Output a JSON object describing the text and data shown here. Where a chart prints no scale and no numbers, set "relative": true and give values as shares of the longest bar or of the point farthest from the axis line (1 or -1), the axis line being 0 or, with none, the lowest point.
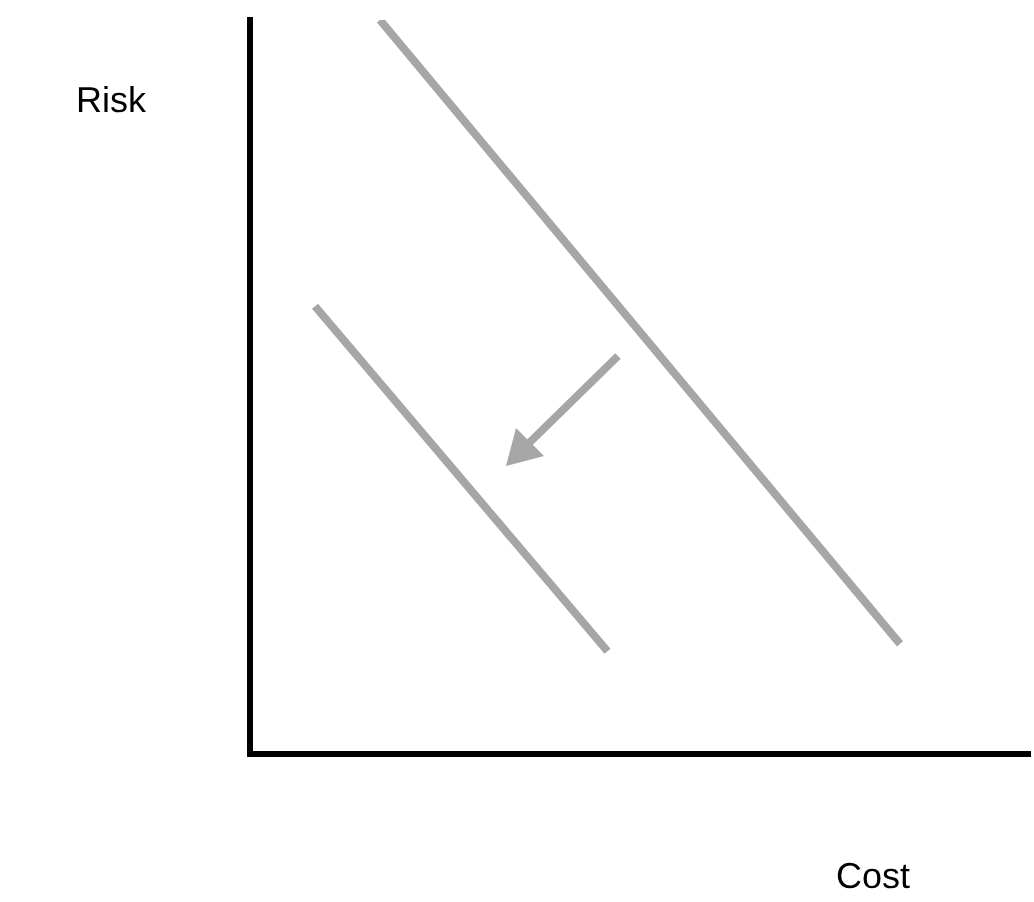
{
  "chart_data": {
    "type": "line",
    "xlabel": "Cost",
    "ylabel": "Risk",
    "relative": true,
    "grid": false,
    "legend": false,
    "marker": "none",
    "line_style": "solid",
    "categories": [
      null,
      null,
      null,
      null,
      null,
      null,
      null,
      null,
      null,
      null,
      null,
      null,
      null,
      null,
      null,
      null,
      null,
      null,
      null,
      null,
      null,
      null,
      null,
      null,
      null
    ],
    "series": [
      {
        "color": "#a6a6a6",
        "values": [
          null,
          null,
          null,
          null,
          1,
          null,
          null,
          null,
          null,
          null,
          null,
          null,
          null,
          null,
          null,
          null,
          null,
          null,
          null,
          null,
          0.15,
          null,
          null,
          null,
          null
        ]
      },
      {
        "color": "#a6a6a6",
        "values": [
          null,
          null,
          0.61,
          null,
          null,
          null,
          null,
          null,
          null,
          null,
          null,
          0.14,
          null,
          null,
          null,
          null,
          null,
          null,
          null,
          null,
          null,
          null,
          null,
          null,
          null
        ]
      }
    ]
  }
}
